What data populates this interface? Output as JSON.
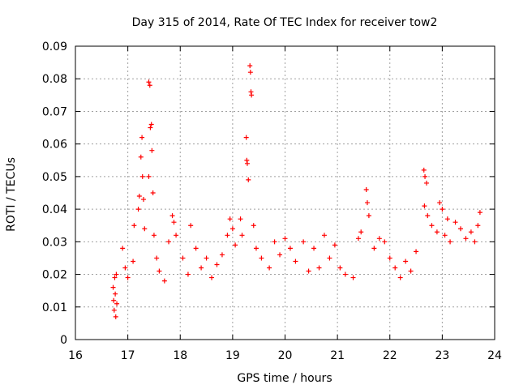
{
  "chart_data": {
    "type": "scatter",
    "title": "Day 315 of 2014, Rate Of TEC Index for receiver tow2",
    "xlabel": "GPS time / hours",
    "ylabel": "ROTI / TECUs",
    "xlim": [
      16,
      24
    ],
    "ylim": [
      0,
      0.09
    ],
    "xticks": [
      "16",
      "17",
      "18",
      "19",
      "20",
      "21",
      "22",
      "23",
      "24"
    ],
    "yticks": [
      "0",
      "0.01",
      "0.02",
      "0.03",
      "0.04",
      "0.05",
      "0.06",
      "0.07",
      "0.08",
      "0.09"
    ],
    "grid": true,
    "marker": "+",
    "series_color": "#ff0000",
    "series": [
      {
        "name": "tow2",
        "points": [
          [
            16.72,
            0.016
          ],
          [
            16.73,
            0.012
          ],
          [
            16.74,
            0.009
          ],
          [
            16.75,
            0.019
          ],
          [
            16.76,
            0.014
          ],
          [
            16.77,
            0.007
          ],
          [
            16.78,
            0.02
          ],
          [
            16.79,
            0.011
          ],
          [
            16.9,
            0.028
          ],
          [
            16.95,
            0.022
          ],
          [
            17.0,
            0.019
          ],
          [
            17.1,
            0.024
          ],
          [
            17.12,
            0.035
          ],
          [
            17.2,
            0.04
          ],
          [
            17.22,
            0.044
          ],
          [
            17.25,
            0.056
          ],
          [
            17.27,
            0.062
          ],
          [
            17.28,
            0.05
          ],
          [
            17.3,
            0.043
          ],
          [
            17.32,
            0.034
          ],
          [
            17.4,
            0.079
          ],
          [
            17.42,
            0.078
          ],
          [
            17.43,
            0.065
          ],
          [
            17.45,
            0.066
          ],
          [
            17.46,
            0.058
          ],
          [
            17.4,
            0.05
          ],
          [
            17.48,
            0.045
          ],
          [
            17.5,
            0.032
          ],
          [
            17.55,
            0.025
          ],
          [
            17.6,
            0.021
          ],
          [
            17.7,
            0.018
          ],
          [
            17.78,
            0.03
          ],
          [
            17.85,
            0.038
          ],
          [
            17.88,
            0.036
          ],
          [
            17.92,
            0.032
          ],
          [
            18.05,
            0.025
          ],
          [
            18.15,
            0.02
          ],
          [
            18.2,
            0.035
          ],
          [
            18.3,
            0.028
          ],
          [
            18.4,
            0.022
          ],
          [
            18.5,
            0.025
          ],
          [
            18.6,
            0.019
          ],
          [
            18.7,
            0.023
          ],
          [
            18.8,
            0.026
          ],
          [
            18.9,
            0.032
          ],
          [
            18.95,
            0.037
          ],
          [
            19.0,
            0.034
          ],
          [
            19.05,
            0.029
          ],
          [
            19.15,
            0.037
          ],
          [
            19.18,
            0.032
          ],
          [
            19.26,
            0.062
          ],
          [
            19.27,
            0.055
          ],
          [
            19.28,
            0.054
          ],
          [
            19.3,
            0.049
          ],
          [
            19.33,
            0.084
          ],
          [
            19.34,
            0.082
          ],
          [
            19.35,
            0.076
          ],
          [
            19.36,
            0.075
          ],
          [
            19.4,
            0.035
          ],
          [
            19.45,
            0.028
          ],
          [
            19.55,
            0.025
          ],
          [
            19.7,
            0.022
          ],
          [
            19.8,
            0.03
          ],
          [
            19.9,
            0.026
          ],
          [
            20.0,
            0.031
          ],
          [
            20.1,
            0.028
          ],
          [
            20.2,
            0.024
          ],
          [
            20.35,
            0.03
          ],
          [
            20.45,
            0.021
          ],
          [
            20.55,
            0.028
          ],
          [
            20.65,
            0.022
          ],
          [
            20.75,
            0.032
          ],
          [
            20.85,
            0.025
          ],
          [
            20.95,
            0.029
          ],
          [
            21.05,
            0.022
          ],
          [
            21.15,
            0.02
          ],
          [
            21.3,
            0.019
          ],
          [
            21.4,
            0.031
          ],
          [
            21.45,
            0.033
          ],
          [
            21.55,
            0.046
          ],
          [
            21.57,
            0.042
          ],
          [
            21.6,
            0.038
          ],
          [
            21.7,
            0.028
          ],
          [
            21.8,
            0.031
          ],
          [
            21.9,
            0.03
          ],
          [
            22.0,
            0.025
          ],
          [
            22.1,
            0.022
          ],
          [
            22.2,
            0.019
          ],
          [
            22.3,
            0.024
          ],
          [
            22.4,
            0.021
          ],
          [
            22.5,
            0.027
          ],
          [
            22.65,
            0.052
          ],
          [
            22.67,
            0.05
          ],
          [
            22.7,
            0.048
          ],
          [
            22.66,
            0.041
          ],
          [
            22.72,
            0.038
          ],
          [
            22.8,
            0.035
          ],
          [
            22.9,
            0.033
          ],
          [
            22.95,
            0.042
          ],
          [
            23.0,
            0.04
          ],
          [
            23.05,
            0.032
          ],
          [
            23.1,
            0.037
          ],
          [
            23.15,
            0.03
          ],
          [
            23.25,
            0.036
          ],
          [
            23.35,
            0.034
          ],
          [
            23.45,
            0.031
          ],
          [
            23.55,
            0.033
          ],
          [
            23.62,
            0.03
          ],
          [
            23.68,
            0.035
          ],
          [
            23.72,
            0.039
          ]
        ]
      }
    ]
  }
}
